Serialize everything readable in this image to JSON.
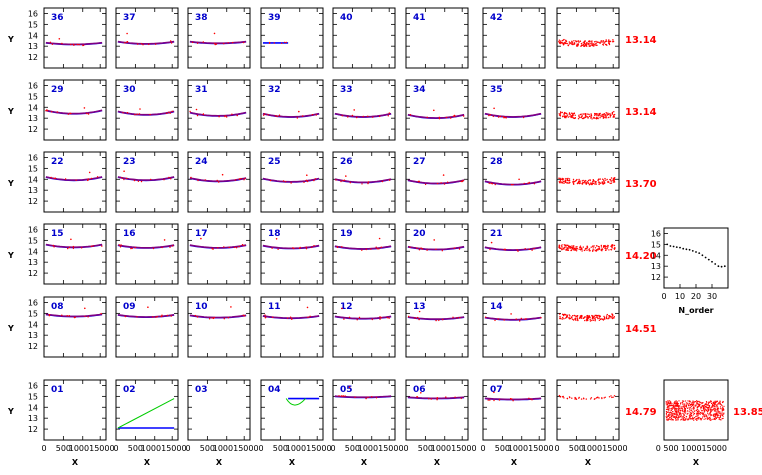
{
  "chart_data": {
    "type": "scatter",
    "ylabel": "Y",
    "xlabel": "X",
    "ylim": [
      11,
      16.5
    ],
    "yticks": [
      12,
      13,
      14,
      15,
      16
    ],
    "xlim": [
      0,
      16000
    ],
    "xtick_labels": [
      "0",
      "500",
      "1000",
      "15000"
    ],
    "xtick_positions": [
      0,
      5000,
      10000,
      14500
    ],
    "colors": {
      "fit": "#0000ff",
      "points": "#ff0000",
      "model": "#800080",
      "label": "#0000cc",
      "value": "#ff0000",
      "extra": "#00cc00"
    },
    "rows": [
      {
        "orders": [
          "36",
          "37",
          "38",
          "39",
          "40",
          "41",
          "42"
        ],
        "levels": [
          13.15,
          13.2,
          13.25,
          13.3,
          null,
          null,
          null
        ],
        "curves": [
          0.15,
          0.2,
          0.15,
          0.1,
          0,
          0,
          0
        ],
        "summary": "13.14"
      },
      {
        "orders": [
          "29",
          "30",
          "31",
          "32",
          "33",
          "34",
          "35"
        ],
        "levels": [
          13.4,
          13.3,
          13.2,
          13.1,
          13.1,
          13.0,
          13.1
        ],
        "curves": [
          0.3,
          0.3,
          0.3,
          0.3,
          0.3,
          0.3,
          0.3
        ],
        "summary": "13.14"
      },
      {
        "orders": [
          "22",
          "23",
          "24",
          "25",
          "26",
          "27",
          "28"
        ],
        "levels": [
          13.9,
          13.9,
          13.8,
          13.75,
          13.7,
          13.6,
          13.5
        ],
        "curves": [
          0.3,
          0.3,
          0.3,
          0.3,
          0.3,
          0.3,
          0.3
        ],
        "summary": "13.70"
      },
      {
        "orders": [
          "15",
          "16",
          "17",
          "18",
          "19",
          "20",
          "21"
        ],
        "levels": [
          14.35,
          14.3,
          14.3,
          14.25,
          14.2,
          14.15,
          14.1
        ],
        "curves": [
          0.25,
          0.25,
          0.25,
          0.25,
          0.25,
          0.25,
          0.25
        ],
        "summary": "14.20"
      },
      {
        "orders": [
          "08",
          "09",
          "10",
          "11",
          "12",
          "13",
          "14"
        ],
        "levels": [
          14.7,
          14.65,
          14.6,
          14.55,
          14.5,
          14.45,
          14.4
        ],
        "curves": [
          0.2,
          0.2,
          0.2,
          0.2,
          0.2,
          0.2,
          0.2
        ],
        "summary": "14.51"
      },
      {
        "orders": [
          "01",
          "02",
          "03",
          "04",
          "05",
          "06",
          "07"
        ],
        "levels": [
          null,
          12.1,
          null,
          14.8,
          14.9,
          14.8,
          14.7
        ],
        "curves": [
          0,
          0,
          0,
          0,
          0.1,
          0.1,
          0.1
        ],
        "summary": "14.79"
      }
    ],
    "side_panel": {
      "xlabel": "N_order",
      "xlim": [
        0,
        40
      ],
      "xticks": [
        0,
        10,
        20,
        30
      ],
      "ylim": [
        11,
        16.5
      ],
      "yticks": [
        12,
        13,
        14,
        15,
        16
      ],
      "points": [
        [
          2,
          15.0
        ],
        [
          4,
          14.85
        ],
        [
          6,
          14.8
        ],
        [
          8,
          14.75
        ],
        [
          10,
          14.7
        ],
        [
          12,
          14.6
        ],
        [
          14,
          14.55
        ],
        [
          16,
          14.5
        ],
        [
          18,
          14.4
        ],
        [
          20,
          14.3
        ],
        [
          22,
          14.2
        ],
        [
          24,
          14.0
        ],
        [
          26,
          13.8
        ],
        [
          28,
          13.6
        ],
        [
          30,
          13.4
        ],
        [
          32,
          13.2
        ],
        [
          34,
          13.0
        ],
        [
          36,
          12.95
        ],
        [
          38,
          13.0
        ]
      ]
    },
    "overall_summary": "13.85"
  }
}
